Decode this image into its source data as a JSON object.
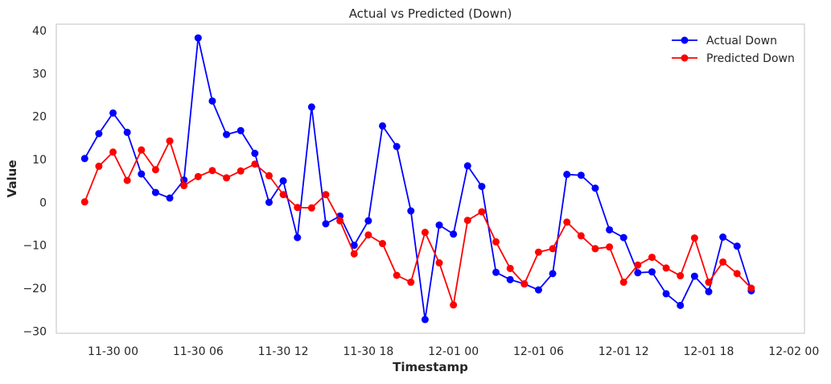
{
  "chart_data": {
    "type": "line",
    "title": "Actual vs Predicted (Down)",
    "xlabel": "Timestamp",
    "ylabel": "Value",
    "x_start": "2024-11-29 22:00",
    "x_step_hours": 1,
    "xlim": [
      "2024-11-29 20:00",
      "2024-12-02 00:45"
    ],
    "ylim": [
      -30.5,
      41.5
    ],
    "x_ticks": [
      "11-30 00",
      "11-30 06",
      "11-30 12",
      "11-30 18",
      "12-01 00",
      "12-01 06",
      "12-01 12",
      "12-01 18",
      "12-02 00"
    ],
    "y_ticks": [
      "40",
      "30",
      "20",
      "10",
      "0",
      "−10",
      "−20",
      "−30"
    ],
    "y_tick_values": [
      40,
      30,
      20,
      10,
      0,
      -10,
      -20,
      -30
    ],
    "grid": false,
    "legend_position": "top-right",
    "series": [
      {
        "name": "Actual Down",
        "color": "#0000ff",
        "values": [
          10.2,
          16.0,
          20.8,
          16.3,
          6.6,
          2.3,
          1.0,
          5.2,
          38.3,
          23.6,
          15.8,
          16.7,
          11.4,
          0.0,
          5.0,
          -8.2,
          22.2,
          -5.0,
          -3.2,
          -10.0,
          -4.3,
          17.8,
          13.0,
          -2.0,
          -27.3,
          -5.3,
          -7.4,
          8.5,
          3.7,
          -16.3,
          -18.0,
          -19.0,
          -20.4,
          -16.6,
          6.5,
          6.3,
          3.3,
          -6.4,
          -8.2,
          -16.4,
          -16.2,
          -21.3,
          -24.0,
          -17.2,
          -20.8,
          -8.1,
          -10.2,
          -20.6
        ]
      },
      {
        "name": "Predicted Down",
        "color": "#ff0000",
        "values": [
          0.1,
          8.4,
          11.7,
          5.1,
          12.2,
          7.6,
          14.3,
          3.9,
          6.0,
          7.4,
          5.7,
          7.3,
          8.9,
          6.2,
          1.8,
          -1.2,
          -1.3,
          1.8,
          -4.3,
          -12.0,
          -7.6,
          -9.6,
          -17.0,
          -18.6,
          -7.0,
          -14.1,
          -23.9,
          -4.2,
          -2.2,
          -9.2,
          -15.4,
          -19.0,
          -11.6,
          -10.8,
          -4.6,
          -7.8,
          -10.8,
          -10.4,
          -18.6,
          -14.6,
          -12.8,
          -15.3,
          -17.1,
          -8.3,
          -18.6,
          -13.9,
          -16.6,
          -20.0
        ]
      }
    ]
  }
}
